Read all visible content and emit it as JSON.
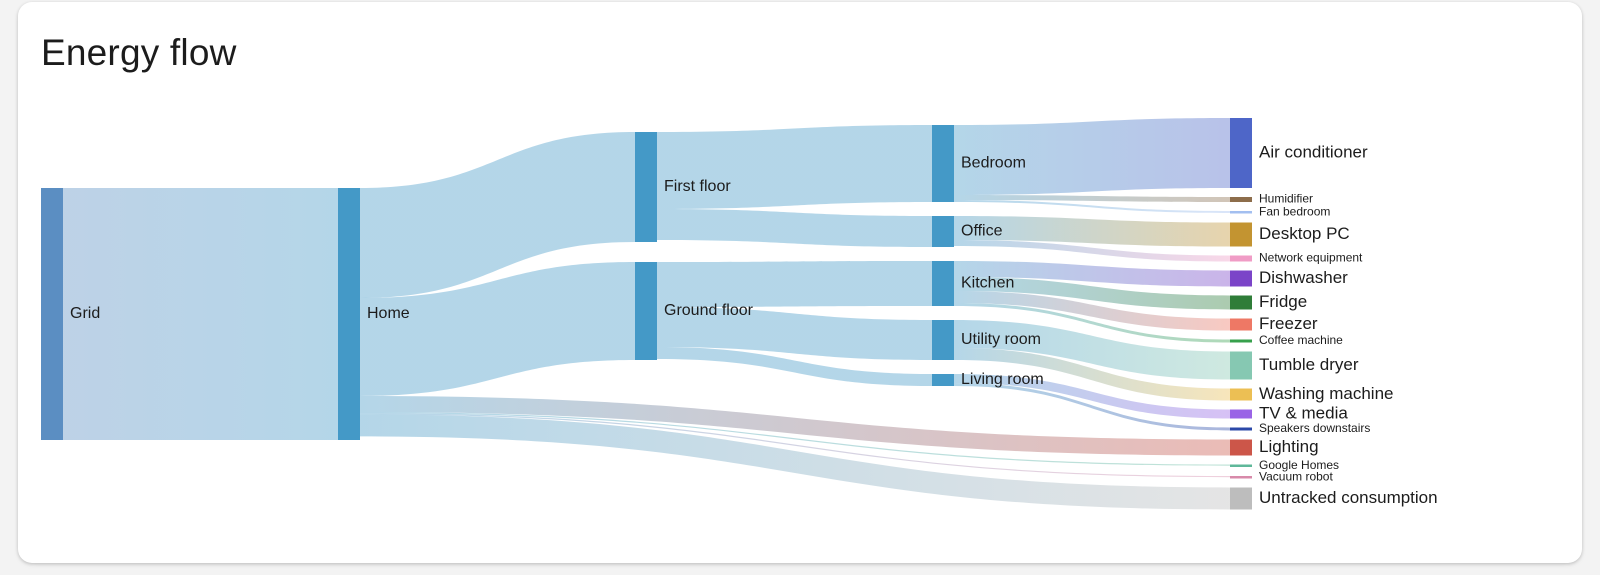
{
  "card": {
    "title": "Energy flow"
  },
  "chart_data": {
    "type": "sankey",
    "title": "Energy flow",
    "units": "relative power",
    "nodes": [
      {
        "id": "grid",
        "label": "Grid",
        "column": 0,
        "color": "#5b8ec2"
      },
      {
        "id": "home",
        "label": "Home",
        "column": 1,
        "color": "#4499c7"
      },
      {
        "id": "first_floor",
        "label": "First floor",
        "column": 2,
        "color": "#4499c7"
      },
      {
        "id": "ground_floor",
        "label": "Ground floor",
        "column": 2,
        "color": "#4499c7"
      },
      {
        "id": "bedroom",
        "label": "Bedroom",
        "column": 3,
        "color": "#4499c7"
      },
      {
        "id": "office",
        "label": "Office",
        "column": 3,
        "color": "#4499c7"
      },
      {
        "id": "kitchen",
        "label": "Kitchen",
        "column": 3,
        "color": "#4499c7"
      },
      {
        "id": "utility_room",
        "label": "Utility room",
        "column": 3,
        "color": "#4499c7"
      },
      {
        "id": "living_room",
        "label": "Living room",
        "column": 3,
        "color": "#4499c7"
      },
      {
        "id": "air_conditioner",
        "label": "Air conditioner",
        "column": 4,
        "color": "#4e66c8"
      },
      {
        "id": "humidifier",
        "label": "Humidifier",
        "column": 4,
        "color": "#8d6d4b"
      },
      {
        "id": "fan_bedroom",
        "label": "Fan bedroom",
        "column": 4,
        "color": "#a3bff0"
      },
      {
        "id": "desktop_pc",
        "label": "Desktop PC",
        "column": 4,
        "color": "#c39431"
      },
      {
        "id": "network_equipment",
        "label": "Network equipment",
        "column": 4,
        "color": "#f09cc6"
      },
      {
        "id": "dishwasher",
        "label": "Dishwasher",
        "column": 4,
        "color": "#7b44c8"
      },
      {
        "id": "fridge",
        "label": "Fridge",
        "column": 4,
        "color": "#2f7d38"
      },
      {
        "id": "freezer",
        "label": "Freezer",
        "column": 4,
        "color": "#ee7865"
      },
      {
        "id": "coffee_machine",
        "label": "Coffee machine",
        "column": 4,
        "color": "#37a04c"
      },
      {
        "id": "tumble_dryer",
        "label": "Tumble dryer",
        "column": 4,
        "color": "#86c8b2"
      },
      {
        "id": "washing_machine",
        "label": "Washing machine",
        "column": 4,
        "color": "#ecbf54"
      },
      {
        "id": "tv_media",
        "label": "TV & media",
        "column": 4,
        "color": "#9a64e6"
      },
      {
        "id": "speakers_downstairs",
        "label": "Speakers downstairs",
        "column": 4,
        "color": "#2b48a8"
      },
      {
        "id": "lighting",
        "label": "Lighting",
        "column": 4,
        "color": "#cc5649"
      },
      {
        "id": "google_homes",
        "label": "Google Homes",
        "column": 4,
        "color": "#5fb89a"
      },
      {
        "id": "vacuum_robot",
        "label": "Vacuum robot",
        "column": 4,
        "color": "#d88aaa"
      },
      {
        "id": "untracked",
        "label": "Untracked consumption",
        "column": 4,
        "color": "#bdbdbd"
      }
    ],
    "links": [
      {
        "source": "grid",
        "target": "home",
        "value": 252
      },
      {
        "source": "home",
        "target": "first_floor",
        "value": 110
      },
      {
        "source": "home",
        "target": "ground_floor",
        "value": 98
      },
      {
        "source": "home",
        "target": "lighting",
        "value": 16
      },
      {
        "source": "home",
        "target": "google_homes",
        "value": 1
      },
      {
        "source": "home",
        "target": "vacuum_robot",
        "value": 1
      },
      {
        "source": "home",
        "target": "untracked",
        "value": 22
      },
      {
        "source": "first_floor",
        "target": "bedroom",
        "value": 77
      },
      {
        "source": "first_floor",
        "target": "office",
        "value": 31
      },
      {
        "source": "ground_floor",
        "target": "kitchen",
        "value": 45
      },
      {
        "source": "ground_floor",
        "target": "utility_room",
        "value": 40
      },
      {
        "source": "ground_floor",
        "target": "living_room",
        "value": 12
      },
      {
        "source": "bedroom",
        "target": "air_conditioner",
        "value": 70
      },
      {
        "source": "bedroom",
        "target": "humidifier",
        "value": 5
      },
      {
        "source": "bedroom",
        "target": "fan_bedroom",
        "value": 2
      },
      {
        "source": "office",
        "target": "desktop_pc",
        "value": 24
      },
      {
        "source": "office",
        "target": "network_equipment",
        "value": 6
      },
      {
        "source": "kitchen",
        "target": "dishwasher",
        "value": 16
      },
      {
        "source": "kitchen",
        "target": "fridge",
        "value": 14
      },
      {
        "source": "kitchen",
        "target": "freezer",
        "value": 12
      },
      {
        "source": "kitchen",
        "target": "coffee_machine",
        "value": 3
      },
      {
        "source": "utility_room",
        "target": "tumble_dryer",
        "value": 28
      },
      {
        "source": "utility_room",
        "target": "washing_machine",
        "value": 12
      },
      {
        "source": "living_room",
        "target": "tv_media",
        "value": 9
      },
      {
        "source": "living_room",
        "target": "speakers_downstairs",
        "value": 3
      }
    ]
  }
}
